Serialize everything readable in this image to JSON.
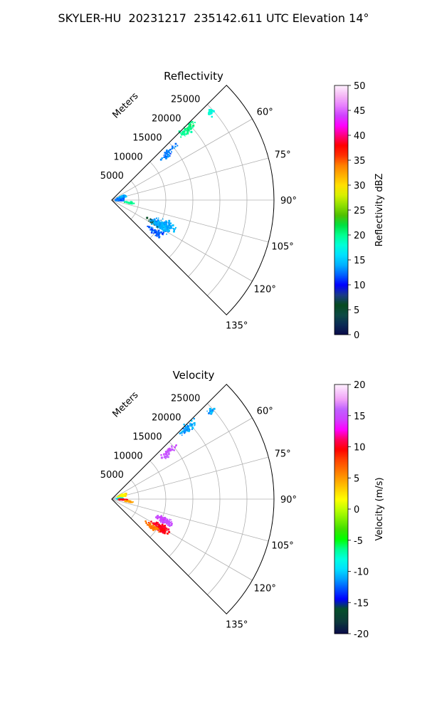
{
  "page": {
    "title": "SKYLER-HU  20231217  235142.611 UTC Elevation 14°"
  },
  "colors": {
    "grid": "#b0b0b0",
    "frame": "#000000"
  },
  "chart_data": [
    {
      "type": "polar-sector",
      "title": "Reflectivity",
      "radial_label": "Meters",
      "r_ticks": [
        5000,
        10000,
        15000,
        20000,
        25000
      ],
      "r_max": 30000,
      "theta_ticks": [
        60,
        75,
        90,
        105,
        120,
        135
      ],
      "theta_range_deg": [
        45,
        135
      ],
      "theta_direction": "clockwise",
      "theta_zero": "north",
      "colorbar": {
        "label": "Reflectivity dBZ",
        "min": 0,
        "max": 50,
        "ticks": [
          0,
          5,
          10,
          15,
          20,
          25,
          30,
          35,
          40,
          45,
          50
        ],
        "colormap": "reflectivity"
      },
      "echo_regions": [
        {
          "theta": 47,
          "r": 19000,
          "spread_theta": 3,
          "spread_r": 2500,
          "count": 70,
          "value": 20
        },
        {
          "theta": 48.5,
          "r": 24500,
          "spread_theta": 1.8,
          "spread_r": 900,
          "count": 30,
          "value": 18
        },
        {
          "theta": 50,
          "r": 14000,
          "spread_theta": 3,
          "spread_r": 2500,
          "count": 35,
          "value": 13
        },
        {
          "theta": 52,
          "r": 13000,
          "spread_theta": 2,
          "spread_r": 1000,
          "count": 12,
          "value": 13
        },
        {
          "theta": 75,
          "r": 2000,
          "spread_theta": 10,
          "spread_r": 1100,
          "count": 110,
          "value": 14
        },
        {
          "theta": 88,
          "r": 1500,
          "spread_theta": 9,
          "spread_r": 1000,
          "count": 80,
          "value": 12
        },
        {
          "theta": 98,
          "r": 3200,
          "spread_theta": 3,
          "spread_r": 1200,
          "count": 30,
          "value": 20
        },
        {
          "theta": 118,
          "r": 9000,
          "spread_theta": 4,
          "spread_r": 2000,
          "count": 60,
          "value": 6
        },
        {
          "theta": 116,
          "r": 10500,
          "spread_theta": 7,
          "spread_r": 3000,
          "count": 230,
          "value": 14
        },
        {
          "theta": 126,
          "r": 10000,
          "spread_theta": 5,
          "spread_r": 2500,
          "count": 60,
          "value": 12
        }
      ]
    },
    {
      "type": "polar-sector",
      "title": "Velocity",
      "radial_label": "Meters",
      "r_ticks": [
        5000,
        10000,
        15000,
        20000,
        25000
      ],
      "r_max": 30000,
      "theta_ticks": [
        60,
        75,
        90,
        105,
        120,
        135
      ],
      "theta_range_deg": [
        45,
        135
      ],
      "theta_direction": "clockwise",
      "theta_zero": "north",
      "colorbar": {
        "label": "Velocity (m/s)",
        "min": -20,
        "max": 20,
        "ticks": [
          -20,
          -15,
          -10,
          -5,
          0,
          5,
          10,
          15,
          20
        ],
        "colormap": "velocity"
      },
      "echo_regions": [
        {
          "theta": 47,
          "r": 19000,
          "spread_theta": 3,
          "spread_r": 2500,
          "count": 70,
          "value": -11
        },
        {
          "theta": 48.5,
          "r": 24500,
          "spread_theta": 1.8,
          "spread_r": 900,
          "count": 30,
          "value": -11
        },
        {
          "theta": 50,
          "r": 14000,
          "spread_theta": 3,
          "spread_r": 2500,
          "count": 35,
          "value": 15
        },
        {
          "theta": 52,
          "r": 13000,
          "spread_theta": 2,
          "spread_r": 1000,
          "count": 12,
          "value": 16
        },
        {
          "theta": 72,
          "r": 2100,
          "spread_theta": 8,
          "spread_r": 1000,
          "count": 90,
          "value": 2
        },
        {
          "theta": 86,
          "r": 1600,
          "spread_theta": 7,
          "spread_r": 900,
          "count": 60,
          "value": -9
        },
        {
          "theta": 92,
          "r": 2000,
          "spread_theta": 3,
          "spread_r": 1200,
          "count": 40,
          "value": 10
        },
        {
          "theta": 98,
          "r": 3200,
          "spread_theta": 3,
          "spread_r": 1200,
          "count": 30,
          "value": 5
        },
        {
          "theta": 112,
          "r": 10500,
          "spread_theta": 4,
          "spread_r": 2000,
          "count": 140,
          "value": 15
        },
        {
          "theta": 120,
          "r": 10500,
          "spread_theta": 5,
          "spread_r": 2500,
          "count": 140,
          "value": 10
        },
        {
          "theta": 124,
          "r": 9000,
          "spread_theta": 4,
          "spread_r": 2000,
          "count": 60,
          "value": 6
        }
      ]
    }
  ]
}
